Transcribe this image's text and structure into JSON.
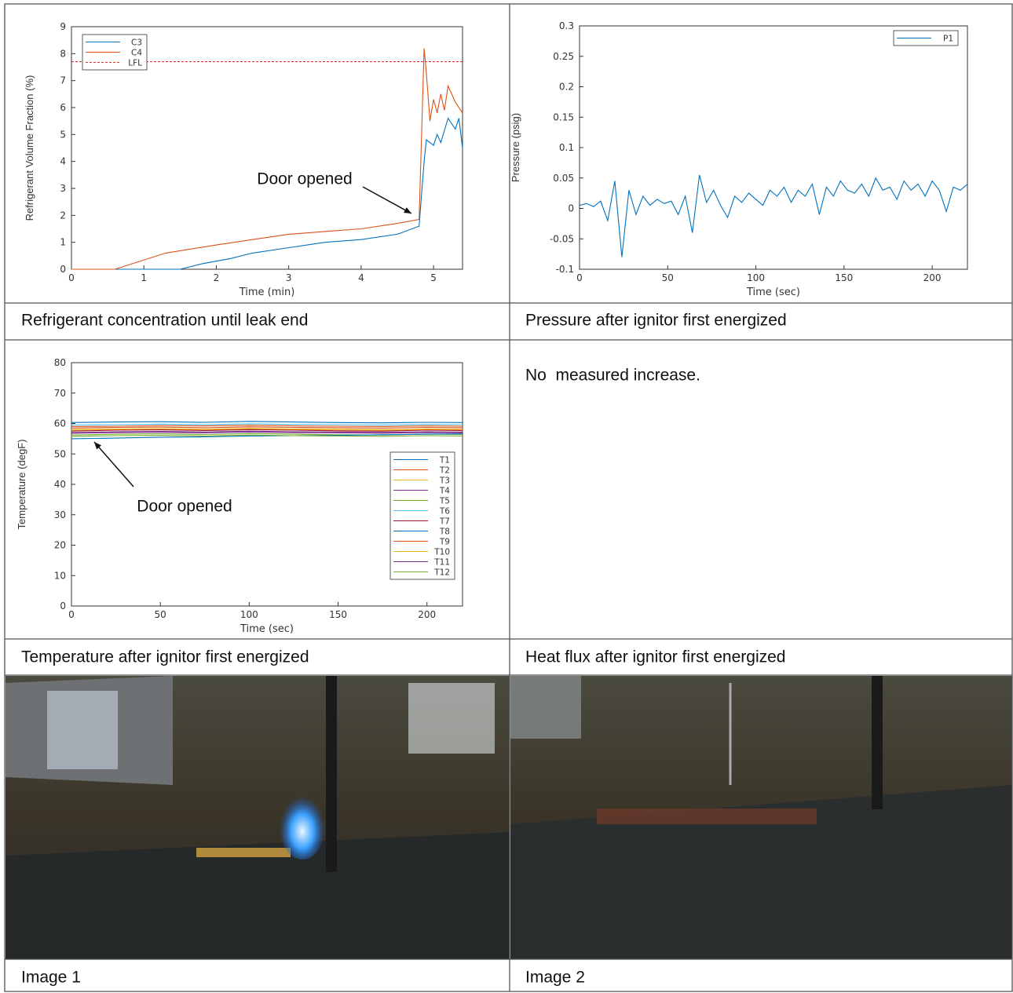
{
  "chart_data": [
    {
      "type": "line",
      "xlabel": "Time (min)",
      "ylabel": "Refrigerant Volume Fraction (%)",
      "annotation": "Door opened",
      "xlim": [
        0,
        5.4
      ],
      "xticks": [
        0,
        1,
        2,
        3,
        4,
        5
      ],
      "ylim": [
        0,
        9
      ],
      "yticks": [
        0,
        1,
        2,
        3,
        4,
        5,
        6,
        7,
        8,
        9
      ],
      "legend": "upper left",
      "series": [
        {
          "name": "C3",
          "color": "#0072bd",
          "x": [
            0,
            1.5,
            1.8,
            2.2,
            2.5,
            3,
            3.5,
            4,
            4.5,
            4.8,
            4.87,
            4.9,
            5,
            5.05,
            5.1,
            5.2,
            5.3,
            5.35,
            5.4
          ],
          "values": [
            0,
            0,
            0.2,
            0.4,
            0.6,
            0.8,
            1,
            1.1,
            1.3,
            1.6,
            4,
            4.8,
            4.6,
            5,
            4.7,
            5.6,
            5.2,
            5.6,
            4.5
          ]
        },
        {
          "name": "C4",
          "color": "#d95319",
          "x": [
            0,
            0.6,
            1.3,
            2,
            2.5,
            3,
            3.5,
            4,
            4.5,
            4.8,
            4.87,
            4.9,
            4.95,
            5,
            5.05,
            5.1,
            5.15,
            5.2,
            5.3,
            5.4
          ],
          "values": [
            0,
            0,
            0.6,
            0.9,
            1.1,
            1.3,
            1.4,
            1.5,
            1.7,
            1.85,
            8.2,
            7.3,
            5.5,
            6.3,
            5.8,
            6.5,
            5.9,
            6.8,
            6.2,
            5.8
          ]
        },
        {
          "name": "LFL",
          "color": "#e03030",
          "linestyle": "dashed",
          "x": [
            0,
            5.4
          ],
          "values": [
            7.7,
            7.7
          ]
        }
      ]
    },
    {
      "type": "line",
      "xlabel": "Time (sec)",
      "ylabel": "Pressure (psig)",
      "xlim": [
        0,
        220
      ],
      "xticks": [
        0,
        50,
        100,
        150,
        200
      ],
      "ylim": [
        -0.1,
        0.3
      ],
      "yticks": [
        -0.1,
        -0.05,
        0,
        0.05,
        0.1,
        0.15,
        0.2,
        0.25,
        0.3
      ],
      "legend": "upper right",
      "series": [
        {
          "name": "P1",
          "color": "#0072bd",
          "x": [
            0,
            4,
            8,
            12,
            16,
            20,
            24,
            28,
            32,
            36,
            40,
            44,
            48,
            52,
            56,
            60,
            64,
            68,
            72,
            76,
            80,
            84,
            88,
            92,
            96,
            100,
            104,
            108,
            112,
            116,
            120,
            124,
            128,
            132,
            136,
            140,
            144,
            148,
            152,
            156,
            160,
            164,
            168,
            172,
            176,
            180,
            184,
            188,
            192,
            196,
            200,
            204,
            208,
            212,
            216,
            220
          ],
          "values": [
            0.005,
            0.008,
            0.003,
            0.012,
            -0.02,
            0.045,
            -0.08,
            0.03,
            -0.01,
            0.02,
            0.005,
            0.015,
            0.008,
            0.012,
            -0.01,
            0.02,
            -0.04,
            0.055,
            0.01,
            0.03,
            0.005,
            -0.015,
            0.02,
            0.01,
            0.025,
            0.015,
            0.005,
            0.03,
            0.02,
            0.035,
            0.01,
            0.03,
            0.02,
            0.04,
            -0.01,
            0.035,
            0.02,
            0.045,
            0.03,
            0.025,
            0.04,
            0.02,
            0.05,
            0.03,
            0.035,
            0.015,
            0.045,
            0.03,
            0.04,
            0.02,
            0.045,
            0.03,
            -0.005,
            0.035,
            0.03,
            0.04
          ]
        }
      ]
    },
    {
      "type": "line",
      "xlabel": "Time (sec)",
      "ylabel": "Temperature (degF)",
      "annotation": "Door opened",
      "xlim": [
        0,
        220
      ],
      "xticks": [
        0,
        50,
        100,
        150,
        200
      ],
      "ylim": [
        0,
        80
      ],
      "yticks": [
        0,
        10,
        20,
        30,
        40,
        50,
        60,
        70,
        80
      ],
      "legend": "center right",
      "series": [
        {
          "name": "T1",
          "color": "#0072bd",
          "x": [
            0,
            25,
            50,
            75,
            100,
            125,
            150,
            175,
            200,
            220
          ],
          "values": [
            60.3,
            60.5,
            60.6,
            60.4,
            60.7,
            60.5,
            60.3,
            60.2,
            60.4,
            60.3
          ]
        },
        {
          "name": "T2",
          "color": "#d95319",
          "x": [
            0,
            25,
            50,
            75,
            100,
            125,
            150,
            175,
            200,
            220
          ],
          "values": [
            58.5,
            58.7,
            58.8,
            58.6,
            58.9,
            58.7,
            58.6,
            58.5,
            58.7,
            58.6
          ]
        },
        {
          "name": "T3",
          "color": "#edb120",
          "x": [
            0,
            25,
            50,
            75,
            100,
            125,
            150,
            175,
            200,
            220
          ],
          "values": [
            57.8,
            58,
            58.1,
            57.9,
            58.2,
            58,
            57.9,
            57.8,
            58,
            57.9
          ]
        },
        {
          "name": "T4",
          "color": "#7e2f8e",
          "x": [
            0,
            25,
            50,
            75,
            100,
            125,
            150,
            175,
            200,
            220
          ],
          "values": [
            57,
            57.3,
            57.4,
            57.2,
            57.5,
            57.3,
            57.2,
            57.1,
            57.3,
            57.2
          ]
        },
        {
          "name": "T5",
          "color": "#77ac30",
          "x": [
            0,
            25,
            50,
            75,
            100,
            125,
            150,
            175,
            200,
            220
          ],
          "values": [
            56.2,
            56.5,
            56.6,
            56.4,
            56.7,
            56.5,
            56.3,
            56.2,
            56.5,
            56.4
          ]
        },
        {
          "name": "T6",
          "color": "#4dbeee",
          "x": [
            0,
            25,
            50,
            75,
            100,
            125,
            150,
            175,
            200,
            220
          ],
          "values": [
            59.5,
            59.6,
            59.8,
            59.6,
            59.9,
            59.7,
            59.6,
            59.5,
            59.7,
            59.6
          ]
        },
        {
          "name": "T7",
          "color": "#a2142f",
          "x": [
            0,
            25,
            50,
            75,
            100,
            125,
            150,
            175,
            200,
            220
          ],
          "values": [
            57.5,
            57.8,
            57.9,
            57.7,
            58,
            57.8,
            57.6,
            57.5,
            57.8,
            57.7
          ]
        },
        {
          "name": "T8",
          "color": "#0072bd",
          "x": [
            0,
            25,
            50,
            75,
            100,
            125,
            150,
            175,
            200,
            220
          ],
          "values": [
            55,
            55.2,
            55.5,
            55.6,
            55.9,
            56,
            56.1,
            56.3,
            56.5,
            56.6
          ]
        },
        {
          "name": "T9",
          "color": "#d95319",
          "x": [
            0,
            25,
            50,
            75,
            100,
            125,
            150,
            175,
            200,
            220
          ],
          "values": [
            59,
            59.1,
            59.3,
            59.2,
            59.4,
            59.2,
            59.1,
            59,
            59.2,
            59.1
          ]
        },
        {
          "name": "T10",
          "color": "#edb120",
          "x": [
            0,
            25,
            50,
            75,
            100,
            125,
            150,
            175,
            200,
            220
          ],
          "values": [
            58,
            58.2,
            58.3,
            58.1,
            58.4,
            58.2,
            58.1,
            58,
            58.2,
            58.1
          ]
        },
        {
          "name": "T11",
          "color": "#7e2f8e",
          "x": [
            0,
            25,
            50,
            75,
            100,
            125,
            150,
            175,
            200,
            220
          ],
          "values": [
            56.8,
            57,
            57.1,
            56.9,
            57.2,
            57,
            56.9,
            56.8,
            57,
            56.9
          ]
        },
        {
          "name": "T12",
          "color": "#77ac30",
          "x": [
            0,
            25,
            50,
            75,
            100,
            125,
            150,
            175,
            200,
            220
          ],
          "values": [
            55.8,
            56,
            56.1,
            55.9,
            56.2,
            56,
            55.9,
            55.8,
            56,
            55.9
          ]
        }
      ]
    }
  ],
  "captions": [
    "Refrigerant concentration until leak end",
    "Pressure after ignitor first energized",
    "Temperature after ignitor first energized",
    "Heat flux after ignitor first energized",
    "Image 1",
    "Image 2"
  ],
  "note": "No  measured increase."
}
